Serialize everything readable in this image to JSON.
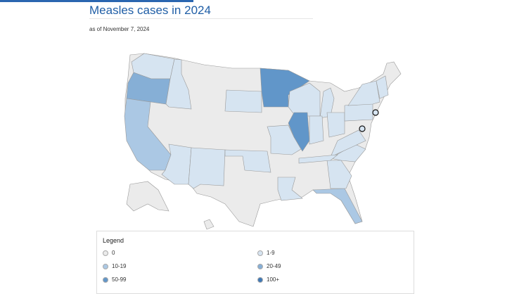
{
  "header": {
    "title": "Measles cases in 2024",
    "subtitle": "as of November 7, 2024"
  },
  "legend": {
    "title": "Legend",
    "items": [
      {
        "label": "0",
        "color": "#ebebeb"
      },
      {
        "label": "1-9",
        "color": "#d6e4f1"
      },
      {
        "label": "10-19",
        "color": "#abc8e4"
      },
      {
        "label": "20-49",
        "color": "#86afd6"
      },
      {
        "label": "50-99",
        "color": "#6196c9"
      },
      {
        "label": "100+",
        "color": "#3f78b5"
      }
    ]
  }
}
